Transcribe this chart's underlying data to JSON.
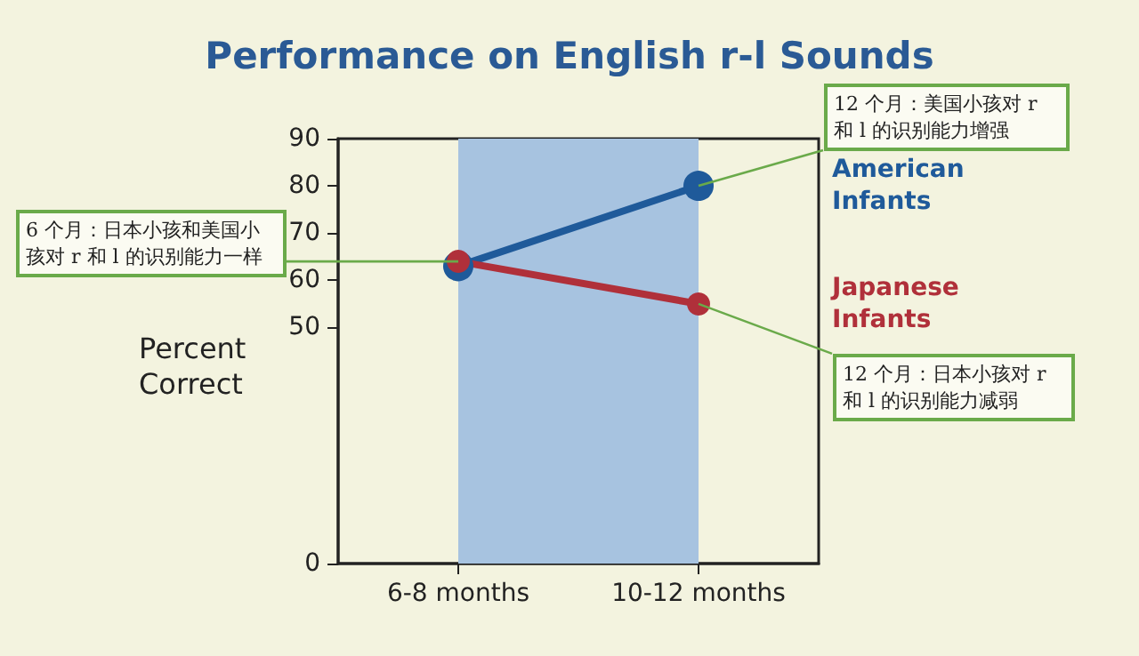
{
  "chart_data": {
    "type": "line",
    "title": "Performance on English r-l Sounds",
    "ylabel": "Percent Correct",
    "categories": [
      "6-8 months",
      "10-12 months"
    ],
    "ylim": [
      0,
      90
    ],
    "yticks": [
      0,
      50,
      60,
      70,
      80,
      90
    ],
    "series": [
      {
        "name": "American Infants",
        "color": "#1f5a9a",
        "values": [
          63,
          80
        ]
      },
      {
        "name": "Japanese Infants",
        "color": "#b0303a",
        "values": [
          64,
          55
        ]
      }
    ],
    "bands": [
      {
        "axis": "x",
        "from": "6-8 months",
        "to": "10-12 months",
        "color": "#a7c3e0"
      }
    ],
    "annotations": [
      {
        "text": "6 个月：日本小孩和美国小孩对 r 和 l 的识别能力一样",
        "x": "6-8 months",
        "y": 64
      },
      {
        "text": "12 个月：美国小孩对 r 和 l 的识别能力增强",
        "x": "10-12 months",
        "y": 80
      },
      {
        "text": "12 个月：日本小孩对 r 和 l 的识别能力减弱",
        "x": "10-12 months",
        "y": 55
      }
    ],
    "grid": false,
    "legend": false,
    "marker": "circle",
    "line_style": "solid"
  }
}
